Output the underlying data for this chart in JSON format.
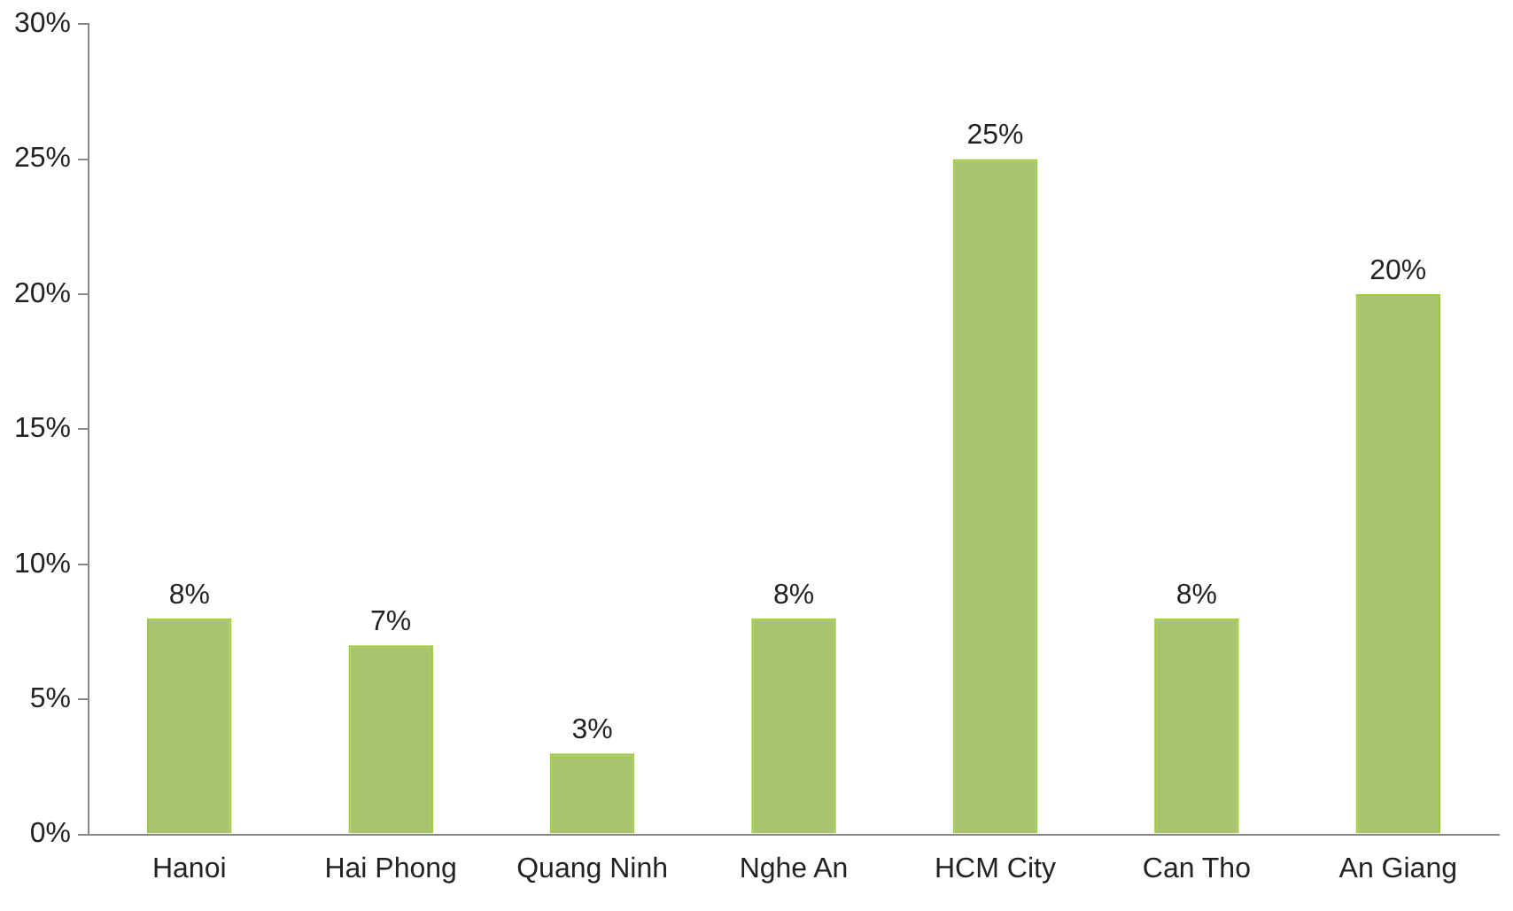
{
  "chart_data": {
    "type": "bar",
    "categories": [
      "Hanoi",
      "Hai Phong",
      "Quang Ninh",
      "Nghe An",
      "HCM City",
      "Can Tho",
      "An Giang"
    ],
    "values": [
      8,
      7,
      3,
      8,
      25,
      8,
      20
    ],
    "value_labels": [
      "8%",
      "7%",
      "3%",
      "8%",
      "25%",
      "8%",
      "20%"
    ],
    "color": "#a9c46c",
    "ylim": [
      0,
      30
    ],
    "yticks": [
      {
        "value": 0,
        "label": "0%"
      },
      {
        "value": 5,
        "label": "5%"
      },
      {
        "value": 10,
        "label": "10%"
      },
      {
        "value": 15,
        "label": "15%"
      },
      {
        "value": 20,
        "label": "20%"
      },
      {
        "value": 25,
        "label": "25%"
      },
      {
        "value": 30,
        "label": "30%"
      }
    ],
    "grid": false,
    "legend": false
  }
}
